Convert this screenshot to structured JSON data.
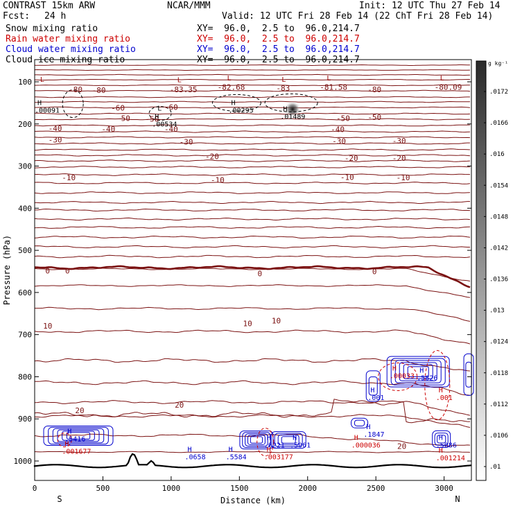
{
  "header": {
    "model": "CONTRAST 15km ARW",
    "org": "NCAR/MMM",
    "init": "Init: 12 UTC Thu 27 Feb 14",
    "fcst_label": "Fcst:",
    "fcst_value": "24 h",
    "valid": "Valid: 12 UTC Fri 28 Feb 14 (22 ChT Fri 28 Feb 14)",
    "fields": [
      {
        "name": "Snow mixing ratio",
        "xy": "XY=  96.0,  2.5 to  96.0,214.7",
        "color": "#000000"
      },
      {
        "name": "Rain water mixing ratio",
        "xy": "XY=  96.0,  2.5 to  96.0,214.7",
        "color": "#cc0000"
      },
      {
        "name": "Cloud water mixing ratio",
        "xy": "XY=  96.0,  2.5 to  96.0,214.7",
        "color": "#0000cc"
      },
      {
        "name": "Cloud ice mixing ratio",
        "xy": "XY=  96.0,  2.5 to  96.0,214.7",
        "color": "#000000"
      }
    ]
  },
  "chart_data": {
    "type": "cross-section contour",
    "xlabel": "Distance (km)",
    "ylabel": "Pressure (hPa)",
    "xlim": [
      0,
      3200
    ],
    "ylim": [
      1040,
      70
    ],
    "xticks": [
      0,
      500,
      1000,
      1500,
      2000,
      2500,
      3000
    ],
    "yticks": [
      100,
      200,
      300,
      400,
      500,
      600,
      700,
      800,
      900,
      1000
    ],
    "end_labels": {
      "left": "S",
      "right": "N"
    },
    "colorbar": {
      "unit": "g kg⁻¹",
      "ticks": [
        ".0172",
        ".0166",
        ".016",
        ".0154",
        ".0148",
        ".0142",
        ".0136",
        ".013",
        ".0124",
        ".0118",
        ".0112",
        ".0106",
        ".01"
      ]
    },
    "temperature_contours": [
      {
        "level": -80,
        "p": 120
      },
      {
        "level": -60,
        "p": 160
      },
      {
        "level": -50,
        "p": 185
      },
      {
        "level": -40,
        "p": 212
      },
      {
        "level": -30,
        "p": 240
      },
      {
        "level": -20,
        "p": 280
      },
      {
        "level": -10,
        "p": 330
      },
      {
        "level": 0,
        "p": 550
      },
      {
        "level": 10,
        "p": 695
      },
      {
        "level": 20,
        "p": 880
      }
    ],
    "contour_labels": [
      {
        "text": "-80",
        "x": 300,
        "p": 118
      },
      {
        "text": "-80",
        "x": 470,
        "p": 120
      },
      {
        "text": "-83.35",
        "x": 1090,
        "p": 118
      },
      {
        "text": "-82.68",
        "x": 1440,
        "p": 112
      },
      {
        "text": "-83",
        "x": 1820,
        "p": 115
      },
      {
        "text": "-81.58",
        "x": 2190,
        "p": 112
      },
      {
        "text": "-80",
        "x": 2490,
        "p": 118
      },
      {
        "text": "-80.09",
        "x": 3030,
        "p": 112
      },
      {
        "text": "-60",
        "x": 610,
        "p": 162
      },
      {
        "text": "-60",
        "x": 1000,
        "p": 160
      },
      {
        "text": "-50",
        "x": 650,
        "p": 186
      },
      {
        "text": "-50",
        "x": 860,
        "p": 188
      },
      {
        "text": "-50",
        "x": 2260,
        "p": 186
      },
      {
        "text": "-50",
        "x": 2490,
        "p": 184
      },
      {
        "text": "-40",
        "x": 150,
        "p": 210
      },
      {
        "text": "-40",
        "x": 540,
        "p": 212
      },
      {
        "text": "-40",
        "x": 1000,
        "p": 212
      },
      {
        "text": "-40",
        "x": 2220,
        "p": 213
      },
      {
        "text": "-30",
        "x": 150,
        "p": 237
      },
      {
        "text": "-30",
        "x": 1110,
        "p": 242
      },
      {
        "text": "-30",
        "x": 2230,
        "p": 241
      },
      {
        "text": "-30",
        "x": 2670,
        "p": 240
      },
      {
        "text": "-20",
        "x": 1300,
        "p": 277
      },
      {
        "text": "-20",
        "x": 2320,
        "p": 281
      },
      {
        "text": "-20",
        "x": 2670,
        "p": 281
      },
      {
        "text": "-10",
        "x": 250,
        "p": 327
      },
      {
        "text": "-10",
        "x": 1340,
        "p": 333
      },
      {
        "text": "-10",
        "x": 2290,
        "p": 326
      },
      {
        "text": "-10",
        "x": 2700,
        "p": 327
      },
      {
        "text": "0",
        "x": 95,
        "p": 548
      },
      {
        "text": "0",
        "x": 240,
        "p": 548
      },
      {
        "text": "0",
        "x": 1650,
        "p": 555
      },
      {
        "text": "0",
        "x": 2490,
        "p": 550
      },
      {
        "text": "10",
        "x": 95,
        "p": 679
      },
      {
        "text": "10",
        "x": 1560,
        "p": 673
      },
      {
        "text": "10",
        "x": 1770,
        "p": 667
      },
      {
        "text": "20",
        "x": 330,
        "p": 880
      },
      {
        "text": "20",
        "x": 1060,
        "p": 867
      },
      {
        "text": "20",
        "x": 2690,
        "p": 965
      }
    ],
    "extrema": [
      {
        "kind": "L",
        "x": 40,
        "p": 100,
        "color": "#990000"
      },
      {
        "kind": "L",
        "x": 1045,
        "p": 101,
        "color": "#990000"
      },
      {
        "kind": "L",
        "x": 1410,
        "p": 97,
        "color": "#990000"
      },
      {
        "kind": "L",
        "x": 1810,
        "p": 100,
        "color": "#990000"
      },
      {
        "kind": "L",
        "x": 2140,
        "p": 97,
        "color": "#990000"
      },
      {
        "kind": "L",
        "x": 2970,
        "p": 97,
        "color": "#990000"
      },
      {
        "kind": "L",
        "x": 900,
        "p": 168,
        "color": "#000000"
      },
      {
        "kind": "H",
        "x": 20,
        "p": 155,
        "color": "#000000",
        "value": ".00091"
      },
      {
        "kind": "H",
        "x": 1440,
        "p": 155,
        "color": "#000000",
        "value": ".00295"
      },
      {
        "kind": "H",
        "x": 1820,
        "p": 170,
        "color": "#000000",
        "value": ".01489"
      },
      {
        "kind": "H",
        "x": 880,
        "p": 188,
        "color": "#000000",
        "value": ".00534"
      },
      {
        "kind": "H",
        "x": 2620,
        "p": 785,
        "color": "#cc0000",
        "value": ".00033"
      },
      {
        "kind": "H",
        "x": 2820,
        "p": 790,
        "color": "#0000cc",
        "value": ".5826"
      },
      {
        "kind": "H",
        "x": 2460,
        "p": 837,
        "color": "#0000cc",
        "value": ".001"
      },
      {
        "kind": "H",
        "x": 2960,
        "p": 837,
        "color": "#cc0000",
        "value": ".001"
      },
      {
        "kind": "H",
        "x": 240,
        "p": 935,
        "color": "#0000cc",
        "value": ".5416"
      },
      {
        "kind": "H",
        "x": 220,
        "p": 965,
        "color": "#cc0000",
        "value": ".001677"
      },
      {
        "kind": "H",
        "x": 1120,
        "p": 978,
        "color": "#0000cc",
        "value": ".0658"
      },
      {
        "kind": "H",
        "x": 1420,
        "p": 978,
        "color": "#0000cc",
        "value": ".5584"
      },
      {
        "kind": "H",
        "x": 1700,
        "p": 950,
        "color": "#0000cc",
        "value": ".6221"
      },
      {
        "kind": "H",
        "x": 1700,
        "p": 978,
        "color": "#cc0000",
        "value": ".003177"
      },
      {
        "kind": "H",
        "x": 1890,
        "p": 950,
        "color": "#0000cc",
        "value": ".5061"
      },
      {
        "kind": "H",
        "x": 2430,
        "p": 924,
        "color": "#0000cc",
        "value": ".1847"
      },
      {
        "kind": "H",
        "x": 2340,
        "p": 950,
        "color": "#cc0000",
        "value": ".000036"
      },
      {
        "kind": "H",
        "x": 2960,
        "p": 950,
        "color": "#0000cc",
        "value": ".5086"
      },
      {
        "kind": "H",
        "x": 2960,
        "p": 980,
        "color": "#cc0000",
        "value": ".001214"
      }
    ]
  }
}
